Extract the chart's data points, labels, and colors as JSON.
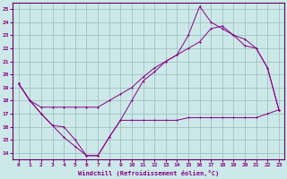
{
  "xlabel": "Windchill (Refroidissement éolien,°C)",
  "bg_color": "#cce8e8",
  "line_color": "#880088",
  "grid_color": "#99bbbb",
  "spine_color": "#660066",
  "xlim": [
    -0.5,
    23.5
  ],
  "ylim": [
    13.5,
    25.5
  ],
  "yticks": [
    14,
    15,
    16,
    17,
    18,
    19,
    20,
    21,
    22,
    23,
    24,
    25
  ],
  "xticks": [
    0,
    1,
    2,
    3,
    4,
    5,
    6,
    7,
    8,
    9,
    10,
    11,
    12,
    13,
    14,
    15,
    16,
    17,
    18,
    19,
    20,
    21,
    22,
    23
  ],
  "line1_x": [
    0,
    1,
    2,
    3,
    4,
    5,
    6,
    7,
    8,
    9,
    10,
    11,
    12,
    13,
    14,
    15,
    16,
    17,
    18,
    19,
    20,
    21,
    22,
    23
  ],
  "line1_y": [
    19.3,
    18.0,
    17.0,
    16.1,
    16.0,
    15.0,
    13.8,
    13.8,
    15.2,
    16.5,
    16.5,
    16.5,
    16.5,
    16.5,
    16.5,
    16.7,
    16.7,
    16.7,
    16.7,
    16.7,
    16.7,
    16.7,
    17.0,
    17.3
  ],
  "line2_x": [
    0,
    1,
    2,
    3,
    4,
    5,
    6,
    7,
    8,
    9,
    10,
    11,
    12,
    13,
    14,
    15,
    16,
    17,
    18,
    19,
    20,
    21,
    22,
    23
  ],
  "line2_y": [
    19.3,
    18.0,
    17.0,
    16.1,
    15.2,
    14.5,
    13.8,
    13.8,
    15.2,
    16.5,
    18.0,
    19.5,
    20.2,
    21.0,
    21.5,
    23.0,
    25.2,
    24.0,
    23.5,
    23.0,
    22.2,
    22.0,
    20.5,
    17.3
  ],
  "line3_x": [
    0,
    1,
    2,
    3,
    4,
    5,
    6,
    7,
    8,
    9,
    10,
    11,
    12,
    13,
    14,
    15,
    16,
    17,
    18,
    19,
    20,
    21,
    22,
    23
  ],
  "line3_y": [
    19.3,
    18.0,
    17.5,
    17.5,
    17.5,
    17.5,
    17.5,
    17.5,
    18.0,
    18.5,
    19.0,
    19.8,
    20.5,
    21.0,
    21.5,
    22.0,
    22.5,
    23.5,
    23.7,
    23.0,
    22.7,
    22.0,
    20.5,
    17.3
  ]
}
